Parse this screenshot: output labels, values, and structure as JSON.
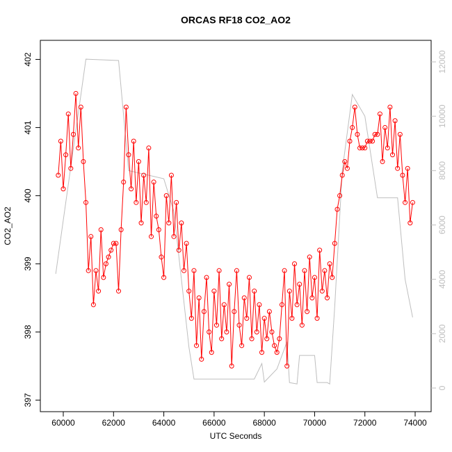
{
  "chart_data": {
    "type": "line",
    "title": "ORCAS RF18 CO2_AO2",
    "x_label": "UTC Seconds",
    "y_label": "CO2_AO2",
    "xlim": [
      59087,
      74636
    ],
    "xticks": [
      60000,
      62000,
      64000,
      66000,
      68000,
      70000,
      72000,
      74000
    ],
    "ylim": [
      396.83,
      402.28
    ],
    "yticks": [
      397,
      398,
      399,
      400,
      401,
      402
    ],
    "y2lim": [
      -870,
      12793
    ],
    "y2ticks": [
      0,
      2000,
      4000,
      6000,
      8000,
      10000,
      12000
    ],
    "series": [
      {
        "color": "#ff0000",
        "marker": "circle",
        "x": [
          59800,
          59900,
          60000,
          60100,
          60200,
          60300,
          60400,
          60500,
          60600,
          60700,
          60800,
          60900,
          61000,
          61100,
          61200,
          61300,
          61400,
          61500,
          61600,
          61700,
          61800,
          61900,
          62000,
          62100,
          62200,
          62300,
          62400,
          62500,
          62600,
          62700,
          62800,
          62900,
          63000,
          63100,
          63200,
          63300,
          63400,
          63500,
          63600,
          63700,
          63800,
          63900,
          64000,
          64100,
          64200,
          64300,
          64400,
          64500,
          64600,
          64700,
          64800,
          64900,
          65000,
          65100,
          65200,
          65300,
          65400,
          65500,
          65600,
          65700,
          65800,
          65900,
          66000,
          66100,
          66200,
          66300,
          66400,
          66500,
          66600,
          66700,
          66800,
          66900,
          67000,
          67100,
          67200,
          67300,
          67400,
          67500,
          67600,
          67700,
          67800,
          67900,
          68000,
          68100,
          68200,
          68300,
          68400,
          68500,
          68600,
          68700,
          68800,
          68900,
          69000,
          69100,
          69200,
          69300,
          69400,
          69500,
          69600,
          69700,
          69800,
          69900,
          70000,
          70100,
          70200,
          70300,
          70400,
          70500,
          70600,
          70700,
          70800,
          70900,
          71000,
          71100,
          71200,
          71300,
          71400,
          71500,
          71600,
          71700,
          71800,
          71900,
          72000,
          72100,
          72200,
          72300,
          72400,
          72500,
          72600,
          72700,
          72800,
          72900,
          73000,
          73100,
          73200,
          73300,
          73400,
          73500,
          73600,
          73700,
          73800,
          73900
        ],
        "values": [
          400.3,
          400.8,
          400.1,
          400.6,
          401.2,
          400.4,
          400.9,
          401.5,
          400.7,
          401.3,
          400.5,
          399.9,
          398.9,
          399.4,
          398.4,
          398.9,
          398.6,
          399.5,
          398.8,
          399.0,
          399.1,
          399.2,
          399.3,
          399.3,
          398.6,
          399.5,
          400.2,
          401.3,
          400.6,
          400.1,
          400.8,
          399.9,
          400.5,
          399.6,
          400.3,
          399.9,
          400.7,
          399.4,
          400.2,
          399.7,
          399.5,
          399.1,
          398.8,
          400.0,
          399.6,
          400.3,
          399.4,
          399.9,
          399.2,
          399.6,
          398.9,
          399.3,
          398.6,
          398.2,
          398.9,
          397.8,
          398.5,
          397.6,
          398.3,
          398.8,
          398.0,
          397.7,
          398.6,
          398.1,
          398.9,
          397.9,
          398.4,
          398.0,
          398.7,
          397.5,
          398.3,
          398.9,
          398.1,
          397.8,
          398.5,
          398.2,
          398.8,
          397.9,
          398.6,
          398.0,
          398.4,
          397.7,
          398.2,
          397.9,
          398.3,
          398.0,
          397.8,
          397.7,
          397.9,
          398.4,
          398.9,
          397.5,
          398.6,
          398.2,
          399.0,
          398.4,
          398.7,
          398.1,
          398.9,
          398.3,
          399.1,
          398.5,
          398.8,
          398.2,
          399.2,
          398.6,
          398.9,
          398.5,
          399.0,
          398.8,
          399.3,
          399.8,
          400.0,
          400.3,
          400.5,
          400.4,
          400.8,
          401.0,
          401.3,
          400.9,
          400.7,
          400.7,
          400.7,
          400.8,
          400.8,
          400.8,
          400.9,
          400.9,
          401.2,
          400.5,
          401.0,
          400.7,
          401.3,
          400.6,
          401.1,
          400.4,
          400.9,
          400.3,
          399.9,
          400.4,
          399.6,
          399.9
        ]
      },
      {
        "color": "#bebebe",
        "axis": "y2",
        "x": [
          59700,
          60900,
          62200,
          62600,
          64000,
          64400,
          65000,
          65200,
          66500,
          67600,
          67900,
          68000,
          68500,
          68900,
          69000,
          69300,
          69400,
          70000,
          70100,
          70500,
          70600,
          70800,
          71100,
          71500,
          72000,
          72500,
          73300,
          73600,
          73900
        ],
        "values": [
          4200,
          12100,
          12050,
          8000,
          7700,
          6500,
          1500,
          330,
          330,
          330,
          900,
          220,
          700,
          1700,
          200,
          150,
          1200,
          1200,
          200,
          200,
          150,
          3000,
          8000,
          10800,
          10000,
          7000,
          7000,
          4000,
          2600
        ]
      }
    ]
  }
}
